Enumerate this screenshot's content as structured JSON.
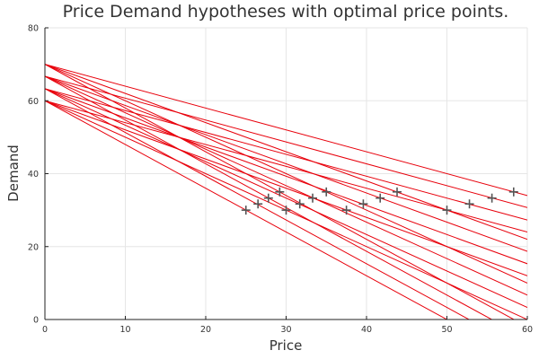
{
  "chart_data": {
    "type": "line",
    "title": "Price Demand hypotheses with optimal price points.",
    "xlabel": "Price",
    "ylabel": "Demand",
    "xlim": [
      0,
      60
    ],
    "ylim": [
      0,
      80
    ],
    "xticks": [
      "0",
      "10",
      "20",
      "30",
      "40",
      "50",
      "60"
    ],
    "yticks": [
      "0",
      "20",
      "40",
      "60",
      "80"
    ],
    "grid": true,
    "legend": "none",
    "line_color": "#e8000b",
    "marker_color": "#555555",
    "series": [
      {
        "intercept": 70,
        "slope": -0.6
      },
      {
        "intercept": 70,
        "slope": -0.8
      },
      {
        "intercept": 70,
        "slope": -1.0
      },
      {
        "intercept": 70,
        "slope": -1.2
      },
      {
        "intercept": 66.7,
        "slope": -0.6
      },
      {
        "intercept": 66.7,
        "slope": -0.8
      },
      {
        "intercept": 66.7,
        "slope": -1.0
      },
      {
        "intercept": 66.7,
        "slope": -1.2
      },
      {
        "intercept": 63.3,
        "slope": -0.6
      },
      {
        "intercept": 63.3,
        "slope": -0.8
      },
      {
        "intercept": 63.3,
        "slope": -1.0
      },
      {
        "intercept": 63.3,
        "slope": -1.2
      },
      {
        "intercept": 60,
        "slope": -0.6
      },
      {
        "intercept": 60,
        "slope": -0.8
      },
      {
        "intercept": 60,
        "slope": -1.0
      },
      {
        "intercept": 60,
        "slope": -1.2
      }
    ],
    "optimal_points": [
      {
        "x": 25.0,
        "y": 30.0
      },
      {
        "x": 26.5,
        "y": 31.7
      },
      {
        "x": 27.8,
        "y": 33.3
      },
      {
        "x": 29.2,
        "y": 35.0
      },
      {
        "x": 30.0,
        "y": 30.0
      },
      {
        "x": 31.7,
        "y": 31.7
      },
      {
        "x": 33.3,
        "y": 33.3
      },
      {
        "x": 35.0,
        "y": 35.0
      },
      {
        "x": 37.5,
        "y": 30.0
      },
      {
        "x": 39.6,
        "y": 31.7
      },
      {
        "x": 41.7,
        "y": 33.3
      },
      {
        "x": 43.8,
        "y": 35.0
      },
      {
        "x": 50.0,
        "y": 30.0
      },
      {
        "x": 52.8,
        "y": 31.7
      },
      {
        "x": 55.6,
        "y": 33.3
      },
      {
        "x": 58.3,
        "y": 35.0
      }
    ]
  }
}
